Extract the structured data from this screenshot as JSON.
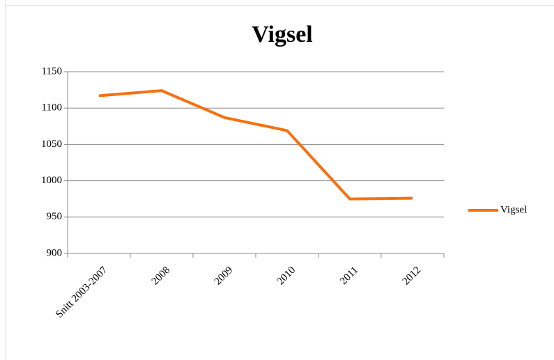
{
  "chart_data": {
    "type": "line",
    "title": "Vigsel",
    "categories": [
      "Snitt 2003-2007",
      "2008",
      "2009",
      "2010",
      "2011",
      "2012"
    ],
    "series": [
      {
        "name": "Vigsel",
        "color": "#f7700f",
        "values": [
          1117,
          1124,
          1087,
          1069,
          975,
          976
        ]
      }
    ],
    "ylim": [
      900,
      1150
    ],
    "yticks": [
      900,
      950,
      1000,
      1050,
      1100,
      1150
    ],
    "grid": true,
    "legend": "right"
  }
}
